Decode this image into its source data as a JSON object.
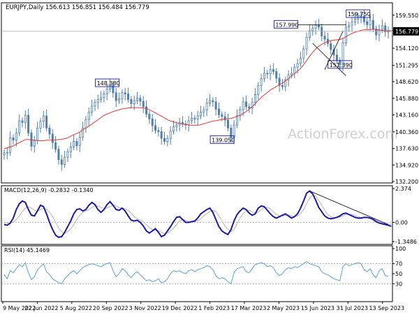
{
  "header": {
    "symbol": "EURJPY,Daily",
    "ohlc": "156.613 156.851 156.484 156.779"
  },
  "watermark": "ActionForex.com",
  "colors": {
    "candle": "#4f7fae",
    "ma": "#e53935",
    "macd": "#1a1aa6",
    "signal": "#b0b0b0",
    "rsi": "#5aa0dc",
    "grid": "#d6d6d6",
    "level": "#aaaaaa",
    "price_tag_bg": "#000000",
    "watermark": "#cfcfcf"
  },
  "chart_data": [
    {
      "type": "candlestick",
      "title": "EURJPY,Daily",
      "last_price": "156.779",
      "ylim": [
        132.2,
        160.9
      ],
      "y_ticks": [
        "159.550",
        "157.030",
        "154.120",
        "151.295",
        "148.620",
        "145.880",
        "143.160",
        "140.360",
        "137.630",
        "134.920",
        "132.200"
      ],
      "x_ticks": [
        "9 May 2022",
        "22 Jun 2022",
        "5 Aug 2022",
        "20 Sep 2022",
        "3 Nov 2022",
        "19 Dec 2022",
        "1 Feb 2023",
        "17 Mar 2023",
        "2 May 2023",
        "15 Jun 2023",
        "31 Jul 2023",
        "13 Sep 2023"
      ],
      "series": [
        {
          "values": [
            136.9,
            137.0,
            139.4,
            139.0,
            140.2,
            142.2,
            141.9,
            143.1,
            140.2,
            138.0,
            138.9,
            141.0,
            142.1,
            143.0,
            141.0,
            140.0,
            138.6,
            137.5,
            135.8,
            135.0,
            136.2,
            137.1,
            137.9,
            138.8,
            138.1,
            139.5,
            141.0,
            142.4,
            143.6,
            144.6,
            145.2,
            145.7,
            146.0,
            146.6,
            147.4,
            148.0,
            146.8,
            145.5,
            145.8,
            146.8,
            146.6,
            145.7,
            145.0,
            145.5,
            145.9,
            145.4,
            144.5,
            143.3,
            142.5,
            141.4,
            140.6,
            140.4,
            139.3,
            138.8,
            139.3,
            140.5,
            141.2,
            141.5,
            141.9,
            141.7,
            141.5,
            142.2,
            142.6,
            142.5,
            143.0,
            143.6,
            144.0,
            145.1,
            145.5,
            145.3,
            144.1,
            143.2,
            142.9,
            142.3,
            141.0,
            139.4,
            141.5,
            143.0,
            144.0,
            145.3,
            144.5,
            144.3,
            145.2,
            146.5,
            148.0,
            149.1,
            150.0,
            149.9,
            150.6,
            150.3,
            149.2,
            148.0,
            147.8,
            148.9,
            149.7,
            150.0,
            151.0,
            151.6,
            152.5,
            154.0,
            155.9,
            157.0,
            157.4,
            157.9,
            157.6,
            156.1,
            155.6,
            154.9,
            153.9,
            153.0,
            152.1,
            151.4,
            155.0,
            157.6,
            157.9,
            158.4,
            158.9,
            159.3,
            159.4,
            158.5,
            158.0,
            158.7,
            157.3,
            156.3,
            157.2,
            157.8,
            156.8,
            156.9
          ],
          "name": ""
        },
        {
          "name": "MA",
          "values": [
            137.6,
            137.75,
            137.9,
            138.05,
            138.35,
            138.6,
            138.85,
            139.1,
            139.1,
            139.05,
            139.0,
            138.95,
            138.9,
            138.9,
            139.0,
            139.0,
            139.0,
            139.05,
            139.1,
            139.15,
            139.25,
            139.4,
            139.65,
            139.9,
            140.1,
            140.35,
            140.7,
            141.0,
            141.3,
            141.65,
            142.0,
            142.35,
            142.75,
            143.05,
            143.3,
            143.5,
            143.7,
            143.85,
            144.0,
            144.15,
            144.2,
            144.3,
            144.35,
            144.35,
            144.35,
            144.35,
            144.3,
            144.2,
            144.0,
            143.75,
            143.5,
            143.2,
            142.95,
            142.65,
            142.35,
            142.15,
            142.0,
            141.85,
            141.75,
            141.65,
            141.55,
            141.5,
            141.45,
            141.45,
            141.45,
            141.55,
            141.7,
            141.85,
            142.0,
            142.15,
            142.2,
            142.3,
            142.4,
            142.5,
            142.55,
            142.55,
            142.75,
            142.9,
            143.1,
            143.4,
            143.7,
            144.1,
            144.5,
            145.0,
            145.55,
            146.0,
            146.45,
            146.85,
            147.25,
            147.55,
            147.8,
            148.1,
            148.4,
            148.75,
            149.15,
            149.55,
            149.95,
            150.35,
            150.8,
            151.4,
            152.1,
            152.8,
            153.45,
            154.0,
            154.45,
            154.75,
            155.0,
            155.2,
            155.35,
            155.45,
            155.5,
            155.55,
            155.75,
            156.0,
            156.3,
            156.55,
            156.75,
            156.9,
            157.05,
            157.15,
            157.15,
            157.2,
            157.25,
            157.2,
            157.1,
            157.05,
            157.0,
            157.0,
            157.0
          ]
        }
      ],
      "annotations": [
        {
          "label": "148.380",
          "value": 148.38
        },
        {
          "label": "139.050",
          "value": 139.05
        },
        {
          "label": "157.990",
          "value": 157.99
        },
        {
          "label": "151.390",
          "value": 151.39
        },
        {
          "label": "159.750",
          "value": 159.75
        }
      ]
    },
    {
      "type": "line",
      "title": "MACD(12,26,9) -0.2832 -0.1340",
      "ylim": [
        -1.3486,
        2.374
      ],
      "y_ticks": [
        "2.374",
        "0.00",
        "-1.3486"
      ],
      "series": [
        {
          "name": "MACD",
          "values": [
            -0.15,
            -0.2,
            -0.05,
            0.3,
            0.9,
            1.3,
            1.5,
            1.4,
            0.9,
            0.5,
            0.45,
            0.8,
            1.2,
            1.1,
            0.6,
            0.0,
            -0.5,
            -0.9,
            -1.05,
            -1.0,
            -0.7,
            -0.3,
            0.1,
            0.6,
            0.9,
            0.95,
            0.8,
            0.9,
            1.2,
            1.4,
            1.25,
            0.9,
            0.7,
            0.9,
            1.25,
            1.45,
            1.2,
            0.9,
            0.85,
            1.0,
            0.8,
            0.45,
            0.15,
            0.1,
            0.15,
            0.0,
            -0.25,
            -0.6,
            -0.75,
            -0.6,
            -0.45,
            -0.7,
            -1.0,
            -0.9,
            -0.6,
            -0.3,
            0.05,
            0.35,
            0.4,
            0.2,
            0.0,
            0.0,
            0.05,
            0.1,
            0.3,
            0.6,
            0.75,
            0.9,
            1.0,
            0.7,
            0.2,
            -0.3,
            -0.6,
            -0.75,
            -0.85,
            -0.5,
            0.1,
            0.55,
            0.8,
            1.0,
            0.9,
            0.65,
            0.5,
            0.6,
            1.0,
            1.15,
            1.1,
            0.85,
            0.6,
            0.4,
            0.3,
            0.4,
            0.5,
            0.6,
            0.45,
            0.3,
            0.4,
            0.6,
            1.0,
            1.5,
            2.05,
            2.2,
            2.0,
            1.55,
            1.05,
            0.75,
            0.45,
            0.3,
            0.25,
            0.3,
            0.35,
            0.45,
            0.6,
            0.65,
            0.55,
            0.45,
            0.35,
            0.3,
            0.3,
            0.35,
            0.35,
            0.3,
            0.2,
            0.05,
            -0.05,
            -0.1,
            -0.15,
            -0.2,
            -0.28
          ]
        },
        {
          "name": "Signal",
          "values": [
            0.0,
            -0.05,
            -0.06,
            0.02,
            0.2,
            0.45,
            0.75,
            1.0,
            1.1,
            1.0,
            0.85,
            0.8,
            0.9,
            0.98,
            0.92,
            0.7,
            0.4,
            0.0,
            -0.4,
            -0.65,
            -0.75,
            -0.65,
            -0.45,
            -0.15,
            0.2,
            0.5,
            0.7,
            0.8,
            0.9,
            1.05,
            1.15,
            1.15,
            1.05,
            0.98,
            1.0,
            1.1,
            1.2,
            1.15,
            1.05,
            1.0,
            0.95,
            0.85,
            0.65,
            0.4,
            0.25,
            0.15,
            0.05,
            -0.15,
            -0.35,
            -0.5,
            -0.55,
            -0.6,
            -0.7,
            -0.8,
            -0.75,
            -0.6,
            -0.4,
            -0.15,
            0.1,
            0.2,
            0.15,
            0.05,
            0.02,
            0.04,
            0.1,
            0.25,
            0.45,
            0.6,
            0.75,
            0.85,
            0.75,
            0.45,
            0.1,
            -0.25,
            -0.5,
            -0.65,
            -0.5,
            -0.1,
            0.3,
            0.6,
            0.8,
            0.85,
            0.75,
            0.65,
            0.7,
            0.9,
            1.05,
            1.05,
            0.95,
            0.75,
            0.55,
            0.45,
            0.45,
            0.5,
            0.52,
            0.45,
            0.4,
            0.45,
            0.6,
            0.9,
            1.3,
            1.7,
            1.9,
            1.85,
            1.55,
            1.2,
            0.85,
            0.55,
            0.4,
            0.32,
            0.32,
            0.38,
            0.45,
            0.55,
            0.58,
            0.55,
            0.48,
            0.4,
            0.35,
            0.33,
            0.33,
            0.32,
            0.27,
            0.15,
            0.05,
            -0.02,
            -0.08,
            -0.12,
            -0.13
          ]
        }
      ],
      "trendline": {
        "from_value": 2.2,
        "to_value": -0.15
      }
    },
    {
      "type": "line",
      "title": "RSI(14) 45.1469",
      "ylim": [
        0,
        100
      ],
      "y_ticks": [
        "100",
        "70",
        "50",
        "30",
        "0"
      ],
      "series": [
        {
          "name": "RSI",
          "values": [
            48,
            40,
            56,
            52,
            60,
            68,
            64,
            72,
            52,
            38,
            44,
            58,
            64,
            70,
            54,
            48,
            40,
            36,
            32,
            30,
            40,
            46,
            52,
            56,
            50,
            56,
            62,
            66,
            68,
            70,
            68,
            66,
            64,
            68,
            70,
            72,
            56,
            44,
            50,
            60,
            56,
            48,
            42,
            50,
            54,
            48,
            42,
            36,
            38,
            34,
            36,
            40,
            32,
            34,
            40,
            50,
            56,
            54,
            56,
            52,
            50,
            56,
            58,
            54,
            58,
            60,
            62,
            66,
            64,
            58,
            46,
            40,
            42,
            40,
            34,
            30,
            52,
            60,
            62,
            64,
            54,
            52,
            60,
            68,
            70,
            72,
            70,
            64,
            66,
            62,
            52,
            46,
            50,
            58,
            62,
            60,
            64,
            62,
            66,
            70,
            74,
            70,
            68,
            66,
            64,
            54,
            50,
            48,
            44,
            40,
            38,
            36,
            64,
            70,
            66,
            68,
            70,
            72,
            70,
            58,
            54,
            60,
            48,
            42,
            56,
            60,
            46,
            45
          ]
        }
      ],
      "levels": [
        70,
        30
      ]
    }
  ]
}
